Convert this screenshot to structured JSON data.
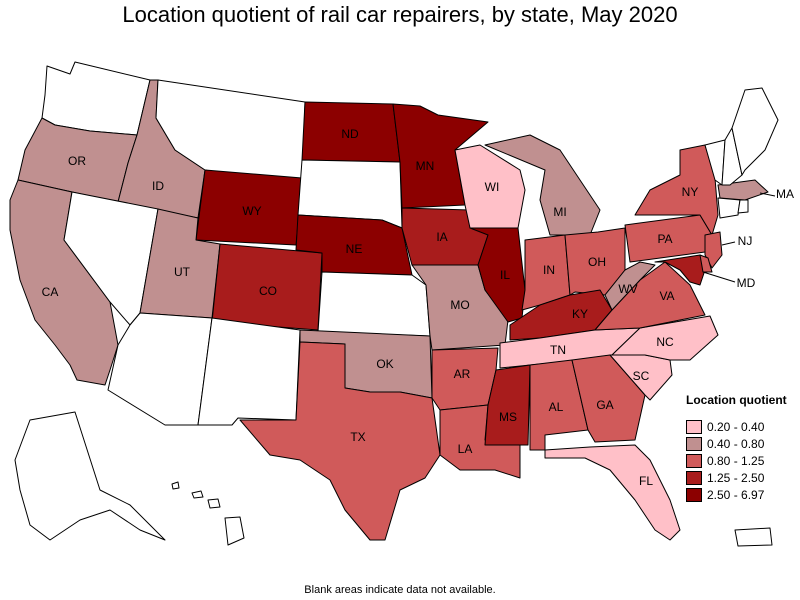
{
  "title": "Location quotient of rail car repairers, by state, May 2020",
  "footnote": "Blank areas indicate data not available.",
  "legend": {
    "title": "Location quotient",
    "items": [
      {
        "label": "0.20 - 0.40",
        "color": "#FFC0C8"
      },
      {
        "label": "0.40 - 0.80",
        "color": "#C09090"
      },
      {
        "label": "0.80 - 1.25",
        "color": "#D05A5A"
      },
      {
        "label": "1.25 - 2.50",
        "color": "#A81C1C"
      },
      {
        "label": "2.50 - 6.97",
        "color": "#8C0000"
      }
    ]
  },
  "colors": {
    "none": "#FFFFFF",
    "c1": "#FFC0C8",
    "c2": "#C09090",
    "c3": "#D05A5A",
    "c4": "#A81C1C",
    "c5": "#8C0000"
  },
  "states": {
    "WA": {
      "label": "",
      "cls": "none"
    },
    "OR": {
      "label": "OR",
      "cls": "c2"
    },
    "CA": {
      "label": "CA",
      "cls": "c2"
    },
    "ID": {
      "label": "ID",
      "cls": "c2"
    },
    "NV": {
      "label": "",
      "cls": "none"
    },
    "MT": {
      "label": "",
      "cls": "none"
    },
    "WY": {
      "label": "WY",
      "cls": "c5"
    },
    "UT": {
      "label": "UT",
      "cls": "c2"
    },
    "AZ": {
      "label": "",
      "cls": "none"
    },
    "CO": {
      "label": "CO",
      "cls": "c4"
    },
    "NM": {
      "label": "",
      "cls": "none"
    },
    "ND": {
      "label": "ND",
      "cls": "c5"
    },
    "SD": {
      "label": "",
      "cls": "none"
    },
    "NE": {
      "label": "NE",
      "cls": "c5"
    },
    "KS": {
      "label": "",
      "cls": "none"
    },
    "OK": {
      "label": "OK",
      "cls": "c2"
    },
    "TX": {
      "label": "TX",
      "cls": "c3"
    },
    "MN": {
      "label": "MN",
      "cls": "c5"
    },
    "IA": {
      "label": "IA",
      "cls": "c4"
    },
    "MO": {
      "label": "MO",
      "cls": "c2"
    },
    "AR": {
      "label": "AR",
      "cls": "c3"
    },
    "LA": {
      "label": "LA",
      "cls": "c3"
    },
    "WI": {
      "label": "WI",
      "cls": "c1"
    },
    "IL": {
      "label": "IL",
      "cls": "c5"
    },
    "MI": {
      "label": "MI",
      "cls": "c2"
    },
    "IN": {
      "label": "IN",
      "cls": "c3"
    },
    "OH": {
      "label": "OH",
      "cls": "c3"
    },
    "KY": {
      "label": "KY",
      "cls": "c4"
    },
    "TN": {
      "label": "TN",
      "cls": "c1"
    },
    "MS": {
      "label": "MS",
      "cls": "c4"
    },
    "AL": {
      "label": "AL",
      "cls": "c3"
    },
    "GA": {
      "label": "GA",
      "cls": "c3"
    },
    "FL": {
      "label": "FL",
      "cls": "c1"
    },
    "SC": {
      "label": "SC",
      "cls": "c1"
    },
    "NC": {
      "label": "NC",
      "cls": "c1"
    },
    "VA": {
      "label": "VA",
      "cls": "c3"
    },
    "WV": {
      "label": "WV",
      "cls": "c2"
    },
    "PA": {
      "label": "PA",
      "cls": "c3"
    },
    "NY": {
      "label": "NY",
      "cls": "c3"
    },
    "NJ": {
      "label": "NJ",
      "cls": "c3"
    },
    "MD": {
      "label": "MD",
      "cls": "c4"
    },
    "DE": {
      "label": "",
      "cls": "c3"
    },
    "MA": {
      "label": "MA",
      "cls": "c2"
    },
    "CT": {
      "label": "",
      "cls": "none"
    },
    "RI": {
      "label": "",
      "cls": "none"
    },
    "VT": {
      "label": "",
      "cls": "none"
    },
    "NH": {
      "label": "",
      "cls": "none"
    },
    "ME": {
      "label": "",
      "cls": "none"
    },
    "AK": {
      "label": "",
      "cls": "none"
    },
    "HI": {
      "label": "",
      "cls": "none"
    },
    "PR": {
      "label": "",
      "cls": "none"
    }
  }
}
